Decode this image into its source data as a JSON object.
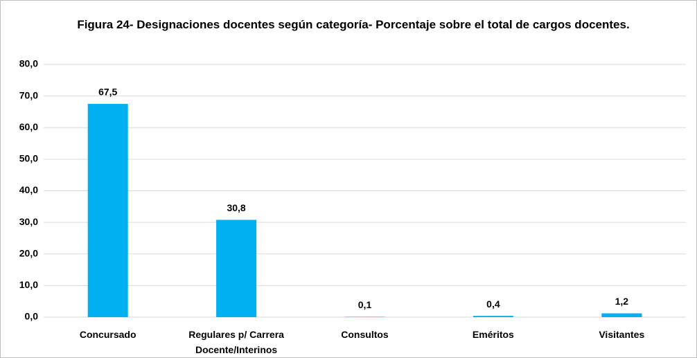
{
  "chart_data": {
    "type": "bar",
    "title": "Figura 24- Designaciones docentes según categoría- Porcentaje sobre el total de cargos docentes.",
    "categories": [
      "Concursado",
      "Regulares p/ Carrera Docente/Interinos",
      "Consultos",
      "Eméritos",
      "Visitantes"
    ],
    "values": [
      67.5,
      30.8,
      0.1,
      0.4,
      1.2
    ],
    "value_labels": [
      "67,5",
      "30,8",
      "0,1",
      "0,4",
      "1,2"
    ],
    "color": "#00b0f0",
    "ylim": [
      0,
      80
    ],
    "yticks": [
      {
        "value": 0,
        "label": "0,0"
      },
      {
        "value": 10,
        "label": "10,0"
      },
      {
        "value": 20,
        "label": "20,0"
      },
      {
        "value": 30,
        "label": "30,0"
      },
      {
        "value": 40,
        "label": "40,0"
      },
      {
        "value": 50,
        "label": "50,0"
      },
      {
        "value": 60,
        "label": "60,0"
      },
      {
        "value": 70,
        "label": "70,0"
      },
      {
        "value": 80,
        "label": "80,0"
      }
    ],
    "grid": true
  }
}
